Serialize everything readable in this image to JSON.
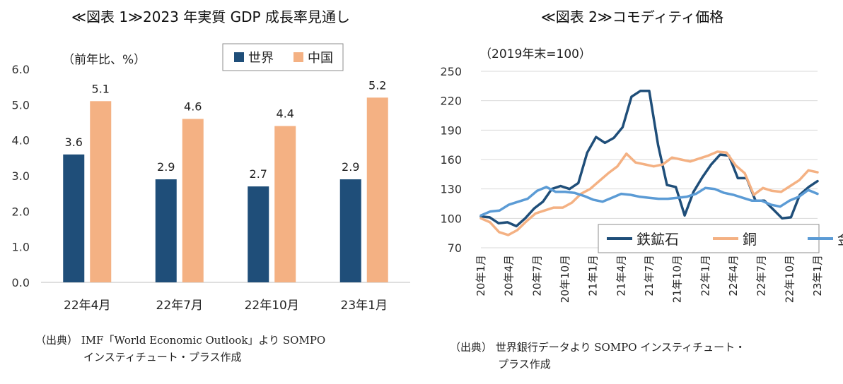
{
  "left": {
    "title": "≪図表 1≫2023 年実質 GDP 成長率見通し",
    "unit": "（前年比、%）",
    "source_line1": "（出典） IMF「World Economic Outlook」より SOMPO",
    "source_line2": "インスティチュート・プラス作成",
    "chart_data": {
      "type": "bar",
      "categories": [
        "22年4月",
        "22年7月",
        "22年10月",
        "23年1月"
      ],
      "series": [
        {
          "name": "世界",
          "color": "#1f4e79",
          "values": [
            3.6,
            2.9,
            2.7,
            2.9
          ]
        },
        {
          "name": "中国",
          "color": "#f4b183",
          "values": [
            5.1,
            4.6,
            4.4,
            5.2
          ]
        }
      ],
      "ylim": [
        0,
        6
      ],
      "yticks": [
        "0.0",
        "1.0",
        "2.0",
        "3.0",
        "4.0",
        "5.0",
        "6.0"
      ],
      "legend": "top-right",
      "grid": false
    }
  },
  "right": {
    "title": "≪図表 2≫コモディティ価格",
    "unit": "（2019年末=100）",
    "source_line1": "（出典） 世界銀行データより SOMPO インスティチュート・",
    "source_line2": "プラス作成",
    "chart_data": {
      "type": "line",
      "x_tick_labels": [
        "20年1月",
        "20年4月",
        "20年7月",
        "20年10月",
        "21年1月",
        "21年4月",
        "21年7月",
        "21年10月",
        "22年1月",
        "22年4月",
        "22年7月",
        "22年10月",
        "23年1月"
      ],
      "ylim": [
        70,
        250
      ],
      "yticks": [
        70,
        100,
        130,
        160,
        190,
        220,
        250
      ],
      "grid": true,
      "legend": "bottom-right",
      "series": [
        {
          "name": "鉄鉱石",
          "color": "#1f4e79",
          "values": [
            102,
            101,
            95,
            96,
            92,
            100,
            110,
            117,
            130,
            133,
            130,
            136,
            167,
            183,
            177,
            182,
            193,
            224,
            230,
            230,
            175,
            134,
            132,
            103,
            127,
            142,
            155,
            165,
            164,
            141,
            141,
            118,
            118,
            109,
            100,
            101,
            124,
            132,
            138
          ]
        },
        {
          "name": "銅",
          "color": "#f4b183",
          "values": [
            100,
            96,
            86,
            83,
            88,
            97,
            105,
            108,
            111,
            111,
            116,
            125,
            130,
            138,
            146,
            153,
            166,
            157,
            155,
            153,
            155,
            162,
            160,
            158,
            161,
            164,
            168,
            167,
            154,
            146,
            124,
            131,
            128,
            127,
            133,
            139,
            149,
            147
          ]
        },
        {
          "name": "金",
          "color": "#5b9bd5",
          "values": [
            103,
            107,
            108,
            114,
            117,
            120,
            128,
            132,
            127,
            127,
            126,
            123,
            119,
            117,
            121,
            125,
            124,
            122,
            121,
            120,
            120,
            121,
            122,
            125,
            131,
            130,
            126,
            124,
            121,
            118,
            118,
            114,
            112,
            118,
            122,
            129,
            125
          ]
        }
      ]
    }
  }
}
